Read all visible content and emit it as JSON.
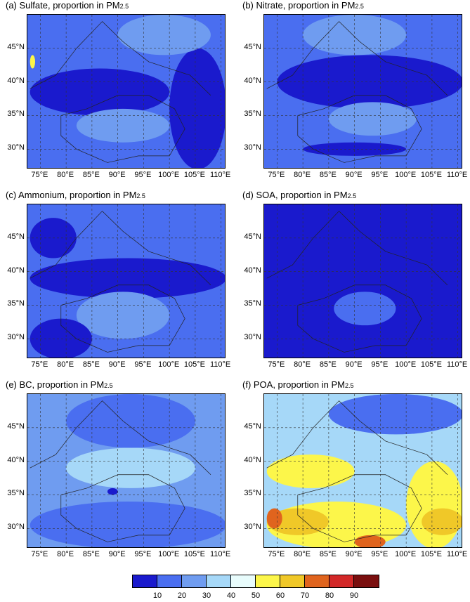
{
  "colorbar": {
    "colors": [
      "#1a1acd",
      "#4a6ef0",
      "#6f9cf0",
      "#a6d8f8",
      "#e8fcfc",
      "#fcf64a",
      "#f0c828",
      "#e0641e",
      "#d22828",
      "#7a0f0f"
    ],
    "labels": [
      "10",
      "20",
      "30",
      "40",
      "50",
      "60",
      "70",
      "80",
      "90"
    ]
  },
  "axes": {
    "lat_labels": [
      "45°N",
      "40°N",
      "35°N",
      "30°N"
    ],
    "lon_labels": [
      "75°E",
      "80°E",
      "85°E",
      "90°E",
      "95°E",
      "100°E",
      "105°E",
      "110°E"
    ]
  },
  "chart_data": [
    {
      "type": "heatmap",
      "title": "(a) Sulfate, proportion in PM",
      "title_sub": "2.5",
      "xlim": [
        72.5,
        111
      ],
      "ylim": [
        27,
        50
      ],
      "base_color": "#4a6ef0",
      "regions": [
        {
          "color": "#1a1acd",
          "lon": [
            73,
            100
          ],
          "lat": [
            35,
            42
          ]
        },
        {
          "color": "#6f9cf0",
          "lon": [
            82,
            100
          ],
          "lat": [
            31,
            36
          ]
        },
        {
          "color": "#1a1acd",
          "lon": [
            100,
            111
          ],
          "lat": [
            27,
            45
          ]
        },
        {
          "color": "#6f9cf0",
          "lon": [
            90,
            108
          ],
          "lat": [
            44,
            50
          ]
        },
        {
          "color": "#fcf64a",
          "lon": [
            73,
            74
          ],
          "lat": [
            42,
            44
          ]
        }
      ]
    },
    {
      "type": "heatmap",
      "title": "(b) Nitrate, proportion in PM",
      "title_sub": "2.5",
      "xlim": [
        72.5,
        111
      ],
      "ylim": [
        27,
        50
      ],
      "base_color": "#4a6ef0",
      "regions": [
        {
          "color": "#1a1acd",
          "lon": [
            75,
            111
          ],
          "lat": [
            36,
            44
          ]
        },
        {
          "color": "#6f9cf0",
          "lon": [
            85,
            102
          ],
          "lat": [
            32,
            37
          ]
        },
        {
          "color": "#1a1acd",
          "lon": [
            80,
            100
          ],
          "lat": [
            29,
            31
          ]
        },
        {
          "color": "#6f9cf0",
          "lon": [
            80,
            100
          ],
          "lat": [
            44,
            50
          ]
        }
      ]
    },
    {
      "type": "heatmap",
      "title": "(c) Ammonium, proportion in PM",
      "title_sub": "2.5",
      "xlim": [
        72.5,
        111
      ],
      "ylim": [
        27,
        50
      ],
      "base_color": "#4a6ef0",
      "regions": [
        {
          "color": "#1a1acd",
          "lon": [
            73,
            111
          ],
          "lat": [
            36,
            42
          ]
        },
        {
          "color": "#6f9cf0",
          "lon": [
            82,
            100
          ],
          "lat": [
            30,
            37
          ]
        },
        {
          "color": "#1a1acd",
          "lon": [
            73,
            82
          ],
          "lat": [
            42,
            48
          ]
        },
        {
          "color": "#1a1acd",
          "lon": [
            73,
            85
          ],
          "lat": [
            27,
            33
          ]
        }
      ]
    },
    {
      "type": "heatmap",
      "title": "(d) SOA, proportion in PM",
      "title_sub": "2.5",
      "xlim": [
        72.5,
        111
      ],
      "ylim": [
        27,
        50
      ],
      "base_color": "#1a1acd",
      "regions": [
        {
          "color": "#4a6ef0",
          "lon": [
            86,
            98
          ],
          "lat": [
            32,
            37
          ]
        }
      ]
    },
    {
      "type": "heatmap",
      "title": "(e) BC, proportion in PM",
      "title_sub": "2.5",
      "xlim": [
        72.5,
        111
      ],
      "ylim": [
        27,
        50
      ],
      "base_color": "#6f9cf0",
      "regions": [
        {
          "color": "#4a6ef0",
          "lon": [
            73,
            111
          ],
          "lat": [
            27,
            34
          ]
        },
        {
          "color": "#a6d8f8",
          "lon": [
            80,
            105
          ],
          "lat": [
            36,
            42
          ]
        },
        {
          "color": "#4a6ef0",
          "lon": [
            80,
            105
          ],
          "lat": [
            42,
            50
          ]
        },
        {
          "color": "#1a1acd",
          "lon": [
            88,
            90
          ],
          "lat": [
            35,
            36
          ]
        }
      ]
    },
    {
      "type": "heatmap",
      "title": "(f) POA, proportion in PM",
      "title_sub": "2.5",
      "xlim": [
        72.5,
        111
      ],
      "ylim": [
        27,
        50
      ],
      "base_color": "#a6d8f8",
      "regions": [
        {
          "color": "#4a6ef0",
          "lon": [
            85,
            111
          ],
          "lat": [
            44,
            50
          ]
        },
        {
          "color": "#fcf64a",
          "lon": [
            73,
            90
          ],
          "lat": [
            36,
            41
          ]
        },
        {
          "color": "#fcf64a",
          "lon": [
            100,
            111
          ],
          "lat": [
            27,
            40
          ]
        },
        {
          "color": "#fcf64a",
          "lon": [
            73,
            100
          ],
          "lat": [
            27,
            34
          ]
        },
        {
          "color": "#f0c828",
          "lon": [
            73,
            85
          ],
          "lat": [
            29,
            33
          ]
        },
        {
          "color": "#e0641e",
          "lon": [
            73,
            76
          ],
          "lat": [
            30,
            33
          ]
        },
        {
          "color": "#e0641e",
          "lon": [
            90,
            96
          ],
          "lat": [
            27,
            29
          ]
        },
        {
          "color": "#f0c828",
          "lon": [
            103,
            111
          ],
          "lat": [
            29,
            33
          ]
        }
      ]
    }
  ]
}
